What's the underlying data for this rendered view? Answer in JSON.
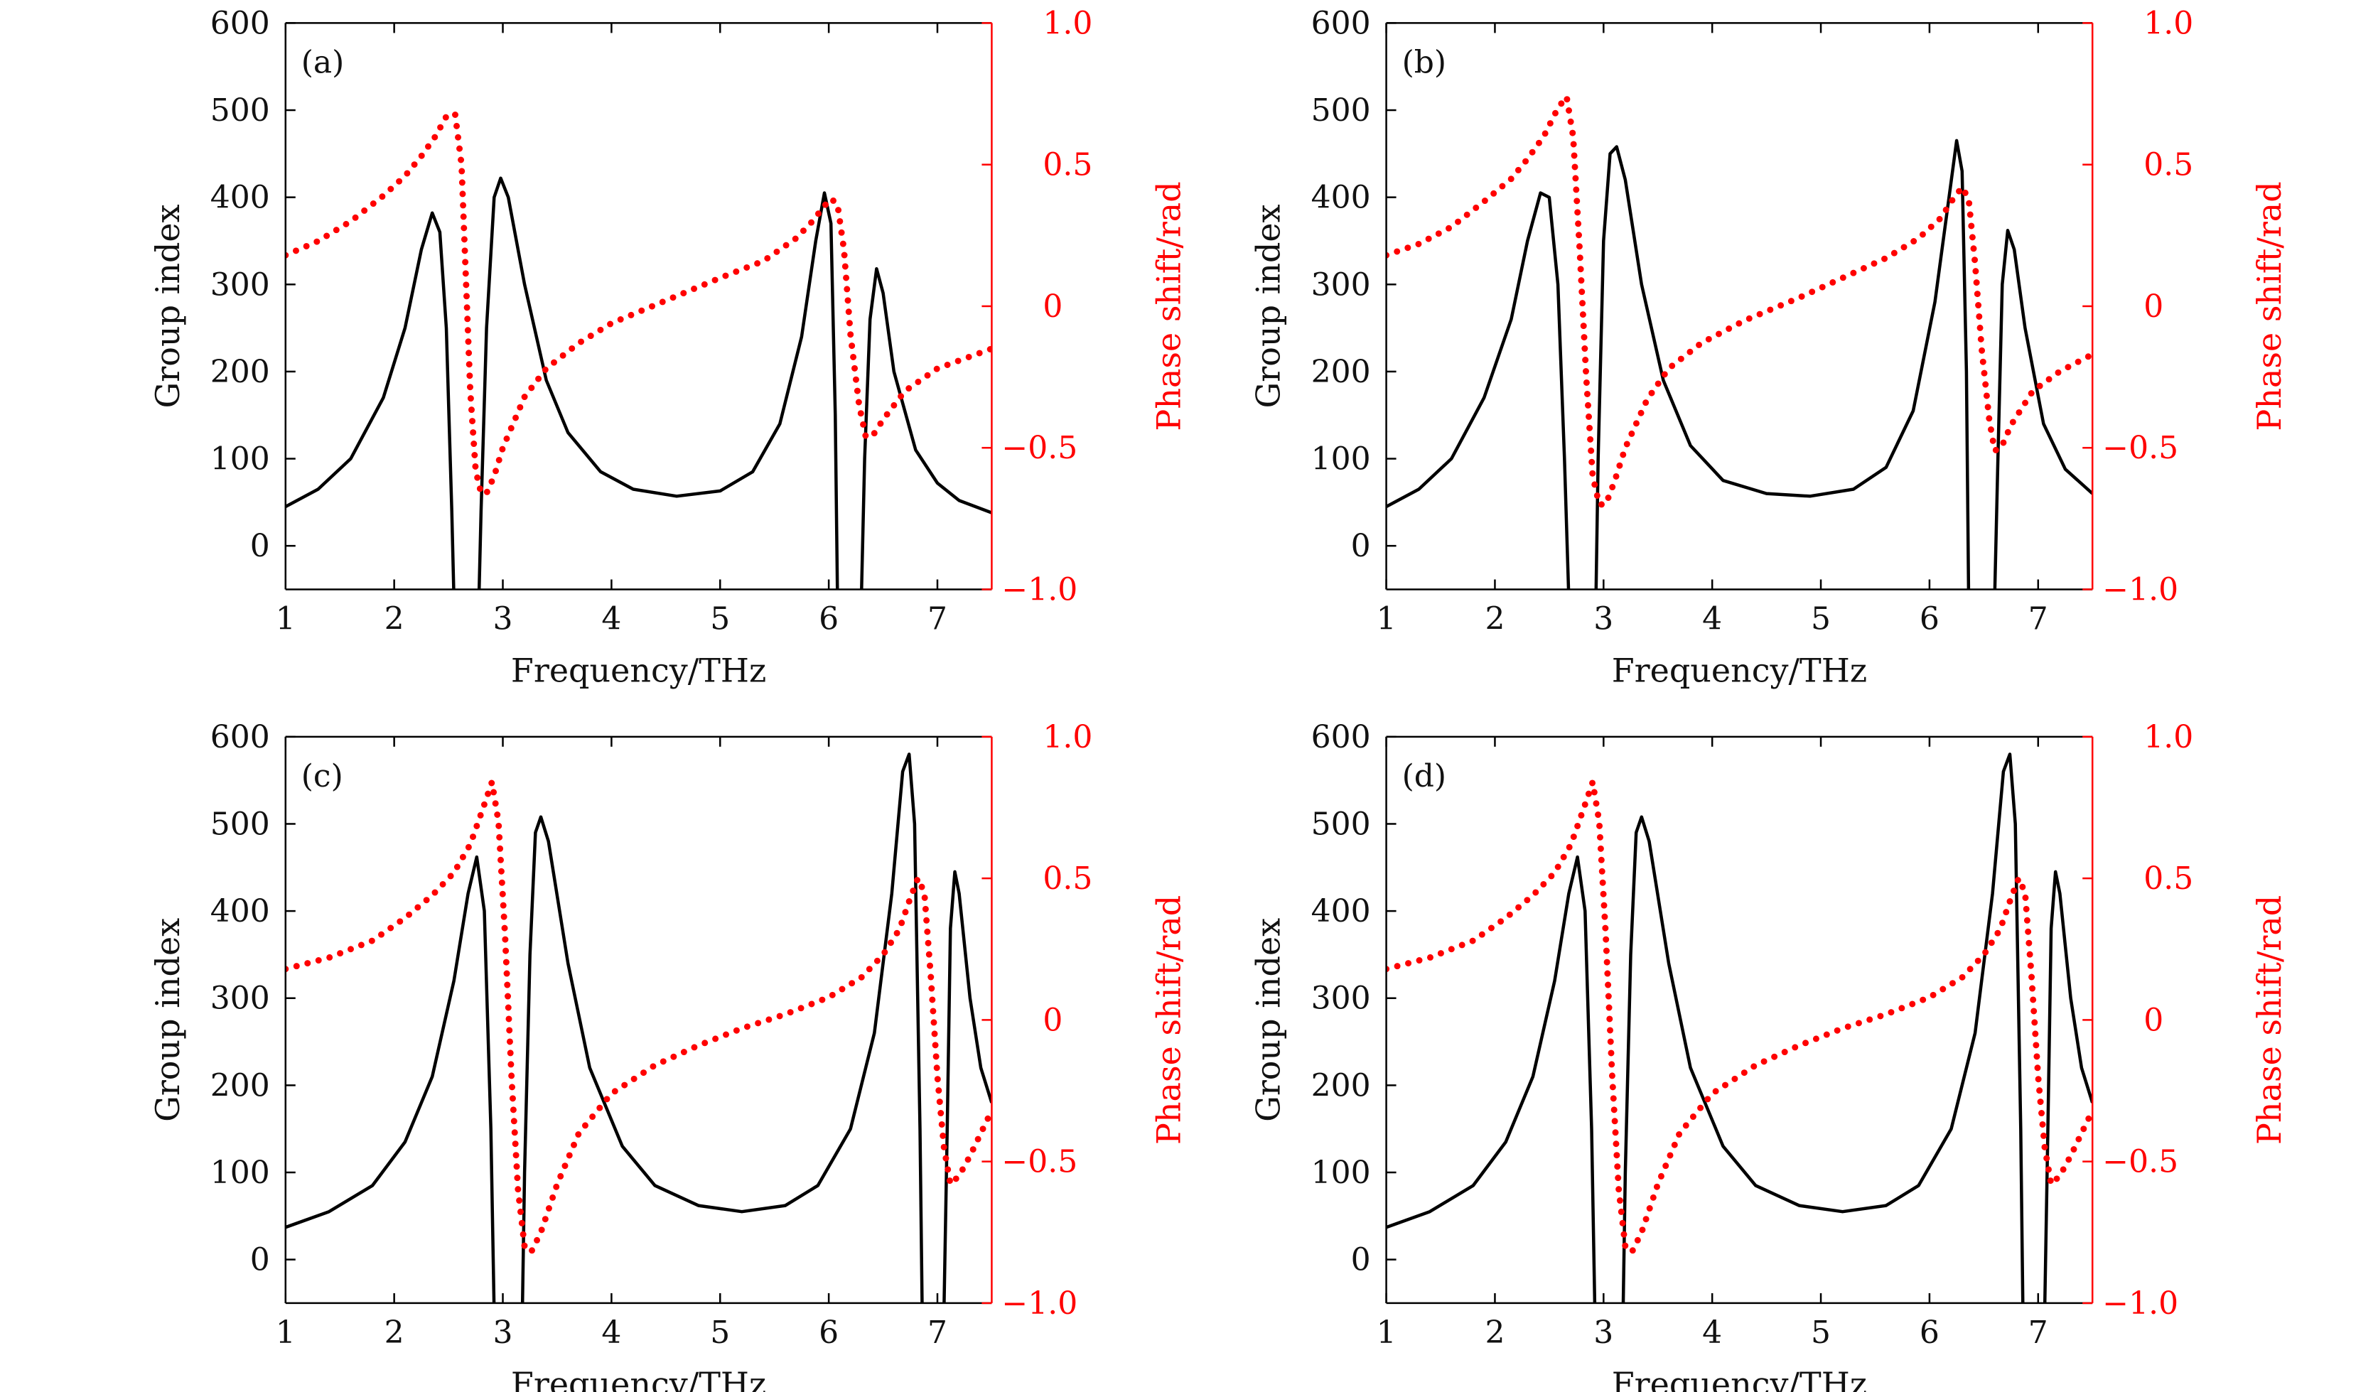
{
  "chart_data": [
    {
      "type": "line",
      "panel_label": "(a)",
      "xlabel": "Frequency/THz",
      "ylabel_left": "Group index",
      "ylabel_right": "Phase shift/rad",
      "xlim": [
        1,
        7.5
      ],
      "ylim_left": [
        -50,
        600
      ],
      "ylim_right": [
        -1.0,
        1.0
      ],
      "xticks": [
        "1",
        "2",
        "3",
        "4",
        "5",
        "6",
        "7"
      ],
      "yticks_left": [
        "0",
        "100",
        "200",
        "300",
        "400",
        "500",
        "600"
      ],
      "yticks_right": [
        "−1.0",
        "−0.5",
        "0",
        "0.5",
        "1.0"
      ],
      "series": [
        {
          "name": "Group index",
          "axis": "left",
          "style": "solid",
          "color": "#000000",
          "x": [
            1.0,
            1.3,
            1.6,
            1.9,
            2.1,
            2.25,
            2.35,
            2.42,
            2.48,
            2.53,
            2.55,
            2.78,
            2.8,
            2.85,
            2.92,
            2.98,
            3.05,
            3.2,
            3.4,
            3.6,
            3.9,
            4.2,
            4.6,
            5.0,
            5.3,
            5.55,
            5.75,
            5.88,
            5.96,
            6.02,
            6.06,
            6.08,
            6.3,
            6.33,
            6.38,
            6.44,
            6.5,
            6.6,
            6.8,
            7.0,
            7.2,
            7.5
          ],
          "values": [
            45,
            65,
            100,
            170,
            250,
            340,
            382,
            360,
            250,
            40,
            -60,
            -60,
            40,
            250,
            400,
            422,
            400,
            300,
            190,
            130,
            85,
            65,
            57,
            63,
            85,
            140,
            240,
            350,
            405,
            370,
            150,
            -60,
            -60,
            100,
            260,
            318,
            290,
            200,
            110,
            72,
            52,
            38
          ]
        },
        {
          "name": "Phase shift",
          "axis": "right",
          "style": "dotted",
          "color": "#ff0000",
          "x": [
            1.0,
            1.3,
            1.6,
            1.9,
            2.1,
            2.25,
            2.38,
            2.48,
            2.56,
            2.62,
            2.66,
            2.7,
            2.75,
            2.8,
            2.85,
            2.92,
            3.0,
            3.2,
            3.4,
            3.7,
            4.0,
            4.5,
            5.0,
            5.4,
            5.7,
            5.85,
            5.95,
            6.02,
            6.08,
            6.14,
            6.2,
            6.28,
            6.34,
            6.4,
            6.5,
            6.7,
            7.0,
            7.5
          ],
          "values": [
            0.18,
            0.23,
            0.3,
            0.39,
            0.46,
            0.53,
            0.6,
            0.67,
            0.68,
            0.5,
            0.1,
            -0.3,
            -0.58,
            -0.66,
            -0.66,
            -0.6,
            -0.5,
            -0.32,
            -0.22,
            -0.13,
            -0.06,
            0.02,
            0.1,
            0.16,
            0.24,
            0.3,
            0.35,
            0.38,
            0.36,
            0.2,
            -0.1,
            -0.35,
            -0.46,
            -0.46,
            -0.4,
            -0.3,
            -0.22,
            -0.15
          ]
        }
      ]
    },
    {
      "type": "line",
      "panel_label": "(b)",
      "xlabel": "Frequency/THz",
      "ylabel_left": "Group index",
      "ylabel_right": "Phase shift/rad",
      "xlim": [
        1,
        7.5
      ],
      "ylim_left": [
        -50,
        600
      ],
      "ylim_right": [
        -1.0,
        1.0
      ],
      "xticks": [
        "1",
        "2",
        "3",
        "4",
        "5",
        "6",
        "7"
      ],
      "yticks_left": [
        "0",
        "100",
        "200",
        "300",
        "400",
        "500",
        "600"
      ],
      "yticks_right": [
        "−1.0",
        "−0.5",
        "0",
        "0.5",
        "1.0"
      ],
      "series": [
        {
          "name": "Group index",
          "axis": "left",
          "style": "solid",
          "color": "#000000",
          "x": [
            1.0,
            1.3,
            1.6,
            1.9,
            2.15,
            2.3,
            2.42,
            2.5,
            2.58,
            2.64,
            2.68,
            2.93,
            2.95,
            3.0,
            3.06,
            3.12,
            3.2,
            3.35,
            3.55,
            3.8,
            4.1,
            4.5,
            4.9,
            5.3,
            5.6,
            5.85,
            6.05,
            6.18,
            6.25,
            6.3,
            6.34,
            6.36,
            6.6,
            6.63,
            6.67,
            6.72,
            6.78,
            6.88,
            7.05,
            7.25,
            7.5
          ],
          "values": [
            45,
            65,
            100,
            170,
            260,
            350,
            405,
            400,
            300,
            100,
            -60,
            -60,
            100,
            350,
            450,
            458,
            420,
            300,
            190,
            115,
            75,
            60,
            57,
            65,
            90,
            155,
            280,
            400,
            465,
            430,
            200,
            -60,
            -60,
            100,
            300,
            362,
            340,
            250,
            140,
            88,
            60
          ]
        },
        {
          "name": "Phase shift",
          "axis": "right",
          "style": "dotted",
          "color": "#ff0000",
          "x": [
            1.0,
            1.3,
            1.6,
            1.9,
            2.15,
            2.3,
            2.45,
            2.58,
            2.66,
            2.72,
            2.78,
            2.84,
            2.9,
            2.96,
            3.02,
            3.1,
            3.2,
            3.4,
            3.6,
            3.9,
            4.3,
            4.8,
            5.2,
            5.6,
            5.9,
            6.1,
            6.22,
            6.3,
            6.36,
            6.42,
            6.48,
            6.55,
            6.6,
            6.66,
            6.75,
            6.95,
            7.2,
            7.5
          ],
          "values": [
            0.18,
            0.22,
            0.28,
            0.37,
            0.45,
            0.52,
            0.6,
            0.7,
            0.74,
            0.6,
            0.2,
            -0.25,
            -0.6,
            -0.7,
            -0.7,
            -0.62,
            -0.5,
            -0.33,
            -0.22,
            -0.13,
            -0.05,
            0.03,
            0.1,
            0.17,
            0.24,
            0.31,
            0.38,
            0.42,
            0.38,
            0.15,
            -0.15,
            -0.4,
            -0.51,
            -0.5,
            -0.42,
            -0.3,
            -0.23,
            -0.17
          ]
        }
      ]
    },
    {
      "type": "line",
      "panel_label": "(c)",
      "xlabel": "Frequency/THz",
      "ylabel_left": "Group index",
      "ylabel_right": "Phase shift/rad",
      "xlim": [
        1,
        7.5
      ],
      "ylim_left": [
        -50,
        600
      ],
      "ylim_right": [
        -1.0,
        1.0
      ],
      "xticks": [
        "1",
        "2",
        "3",
        "4",
        "5",
        "6",
        "7"
      ],
      "yticks_left": [
        "0",
        "100",
        "200",
        "300",
        "400",
        "500",
        "600"
      ],
      "yticks_right": [
        "−1.0",
        "−0.5",
        "0",
        "0.5",
        "1.0"
      ],
      "series": [
        {
          "name": "Group index",
          "axis": "left",
          "style": "solid",
          "color": "#000000",
          "x": [
            1.0,
            1.4,
            1.8,
            2.1,
            2.35,
            2.55,
            2.68,
            2.76,
            2.83,
            2.89,
            2.92,
            3.18,
            3.2,
            3.25,
            3.3,
            3.35,
            3.42,
            3.6,
            3.8,
            4.1,
            4.4,
            4.8,
            5.2,
            5.6,
            5.9,
            6.2,
            6.42,
            6.58,
            6.68,
            6.74,
            6.79,
            6.84,
            6.86,
            7.06,
            7.09,
            7.12,
            7.16,
            7.2,
            7.3,
            7.4,
            7.5
          ],
          "values": [
            37,
            55,
            85,
            135,
            210,
            320,
            420,
            462,
            400,
            150,
            -60,
            -60,
            100,
            350,
            490,
            508,
            480,
            340,
            220,
            130,
            85,
            62,
            55,
            62,
            85,
            150,
            260,
            420,
            560,
            580,
            500,
            150,
            -60,
            -60,
            150,
            380,
            445,
            420,
            300,
            220,
            180
          ]
        },
        {
          "name": "Phase shift",
          "axis": "right",
          "style": "dotted",
          "color": "#ff0000",
          "x": [
            1.0,
            1.4,
            1.8,
            2.1,
            2.35,
            2.55,
            2.7,
            2.82,
            2.9,
            2.96,
            3.02,
            3.08,
            3.14,
            3.2,
            3.26,
            3.35,
            3.5,
            3.7,
            4.0,
            4.4,
            4.8,
            5.2,
            5.6,
            6.0,
            6.3,
            6.5,
            6.65,
            6.75,
            6.82,
            6.88,
            6.94,
            7.0,
            7.06,
            7.12,
            7.2,
            7.3,
            7.4,
            7.5
          ],
          "values": [
            0.18,
            0.22,
            0.28,
            0.36,
            0.44,
            0.52,
            0.62,
            0.75,
            0.84,
            0.7,
            0.3,
            -0.2,
            -0.6,
            -0.8,
            -0.82,
            -0.75,
            -0.58,
            -0.4,
            -0.26,
            -0.16,
            -0.09,
            -0.03,
            0.02,
            0.08,
            0.15,
            0.23,
            0.32,
            0.43,
            0.5,
            0.45,
            0.15,
            -0.2,
            -0.45,
            -0.58,
            -0.55,
            -0.48,
            -0.4,
            -0.32
          ]
        }
      ]
    },
    {
      "type": "line",
      "panel_label": "(d)",
      "xlabel": "Frequency/THz",
      "ylabel_left": "Group index",
      "ylabel_right": "Phase shift/rad",
      "xlim": [
        1,
        7.5
      ],
      "ylim_left": [
        -50,
        600
      ],
      "ylim_right": [
        -1.0,
        1.0
      ],
      "xticks": [
        "1",
        "2",
        "3",
        "4",
        "5",
        "6",
        "7"
      ],
      "yticks_left": [
        "0",
        "100",
        "200",
        "300",
        "400",
        "500",
        "600"
      ],
      "yticks_right": [
        "−1.0",
        "−0.5",
        "0",
        "0.5",
        "1.0"
      ],
      "series": [
        {
          "name": "Group index",
          "axis": "left",
          "style": "solid",
          "color": "#000000",
          "x": [
            1.0,
            1.4,
            1.8,
            2.1,
            2.35,
            2.55,
            2.68,
            2.76,
            2.83,
            2.89,
            2.92,
            3.18,
            3.2,
            3.25,
            3.3,
            3.35,
            3.42,
            3.6,
            3.8,
            4.1,
            4.4,
            4.8,
            5.2,
            5.6,
            5.9,
            6.2,
            6.42,
            6.58,
            6.68,
            6.74,
            6.79,
            6.84,
            6.86,
            7.06,
            7.09,
            7.12,
            7.16,
            7.2,
            7.3,
            7.4,
            7.5
          ],
          "values": [
            37,
            55,
            85,
            135,
            210,
            320,
            420,
            462,
            400,
            150,
            -60,
            -60,
            100,
            350,
            490,
            508,
            480,
            340,
            220,
            130,
            85,
            62,
            55,
            62,
            85,
            150,
            260,
            420,
            560,
            580,
            500,
            150,
            -60,
            -60,
            150,
            380,
            445,
            420,
            300,
            220,
            180
          ]
        },
        {
          "name": "Phase shift",
          "axis": "right",
          "style": "dotted",
          "color": "#ff0000",
          "x": [
            1.0,
            1.4,
            1.8,
            2.1,
            2.35,
            2.55,
            2.7,
            2.82,
            2.9,
            2.96,
            3.02,
            3.08,
            3.14,
            3.2,
            3.26,
            3.35,
            3.5,
            3.7,
            4.0,
            4.4,
            4.8,
            5.2,
            5.6,
            6.0,
            6.3,
            6.5,
            6.65,
            6.75,
            6.82,
            6.88,
            6.94,
            7.0,
            7.06,
            7.12,
            7.2,
            7.3,
            7.4,
            7.5
          ],
          "values": [
            0.18,
            0.22,
            0.28,
            0.36,
            0.44,
            0.52,
            0.62,
            0.75,
            0.84,
            0.7,
            0.3,
            -0.2,
            -0.6,
            -0.8,
            -0.82,
            -0.75,
            -0.58,
            -0.4,
            -0.26,
            -0.16,
            -0.09,
            -0.03,
            0.02,
            0.08,
            0.15,
            0.23,
            0.32,
            0.43,
            0.5,
            0.45,
            0.15,
            -0.2,
            -0.45,
            -0.58,
            -0.55,
            -0.48,
            -0.4,
            -0.32
          ]
        }
      ]
    }
  ]
}
